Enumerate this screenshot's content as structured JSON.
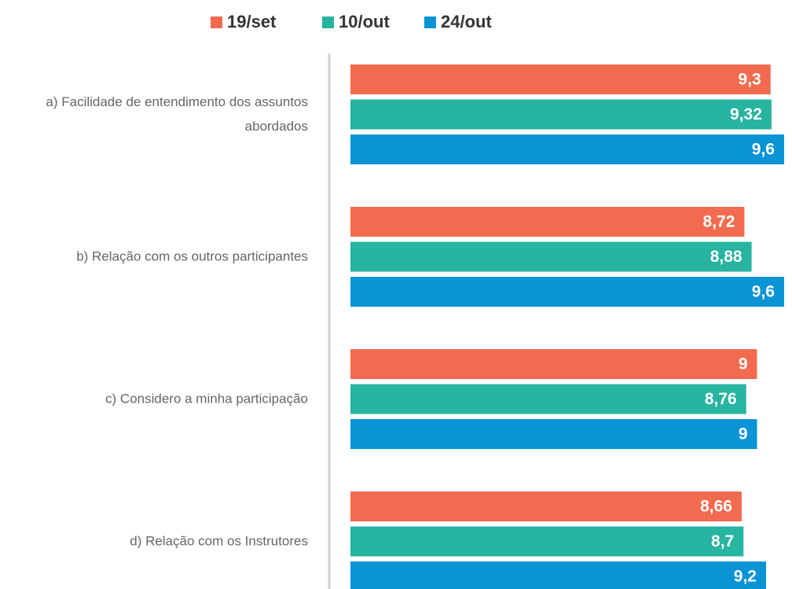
{
  "chart_data": {
    "type": "bar",
    "categories": [
      "a) Facilidade de entendimento dos assuntos abordados",
      "b) Relação com os outros participantes",
      "c) Considero a minha participação",
      "d) Relação com os Instrutores"
    ],
    "series": [
      {
        "name": "19/set",
        "color": "#f26b50",
        "values": [
          9.3,
          8.72,
          9,
          8.66
        ],
        "value_labels": [
          "9,3",
          "8,72",
          "9",
          "8,66"
        ]
      },
      {
        "name": "10/out",
        "color": "#27b4a1",
        "values": [
          9.32,
          8.88,
          8.76,
          8.7
        ],
        "value_labels": [
          "9,32",
          "8,88",
          "8,76",
          "8,7"
        ]
      },
      {
        "name": "24/out",
        "color": "#0a94d6",
        "values": [
          9.6,
          9.6,
          9,
          9.2
        ],
        "value_labels": [
          "9,6",
          "9,6",
          "9",
          "9,2"
        ]
      }
    ]
  }
}
